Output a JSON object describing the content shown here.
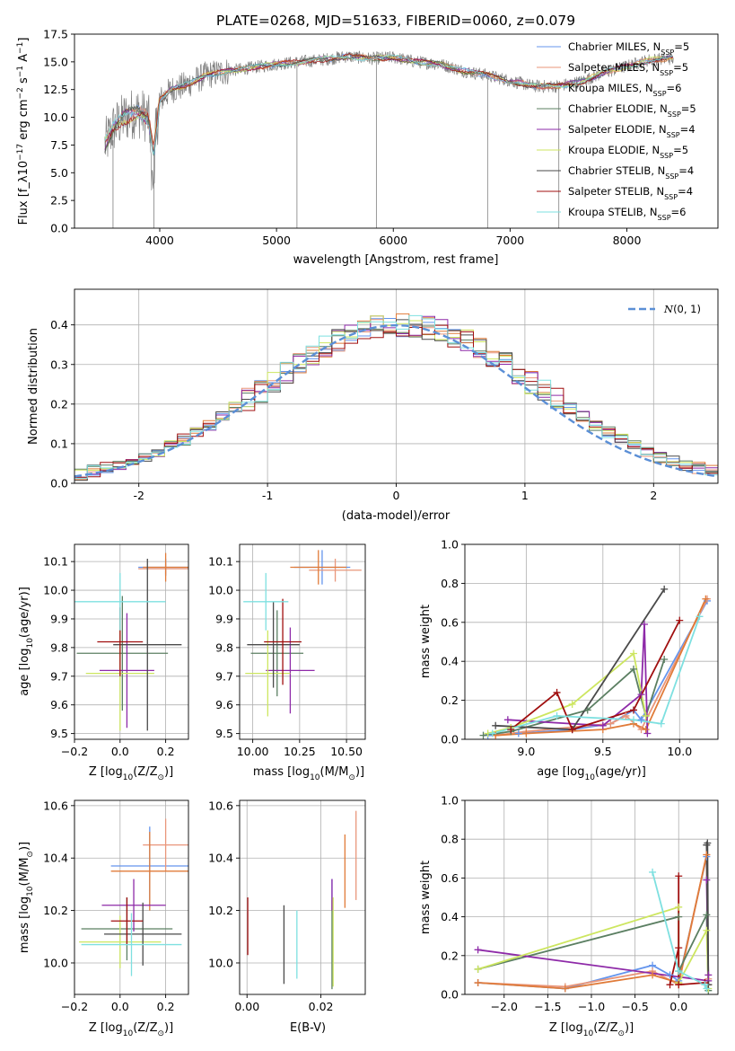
{
  "chart_data": [
    {
      "id": "spectrum",
      "type": "line",
      "title": "PLATE=0268, MJD=51633, FIBERID=0060, z=0.079",
      "xlabel": "wavelength [Angstrom, rest frame]",
      "ylabel": "Flux [f_λ10^{-17} erg cm^{-2} s^{-1} A^{-1}]",
      "xlim": [
        3270,
        8780
      ],
      "ylim": [
        0,
        17.5
      ],
      "xticks": [
        4000,
        5000,
        6000,
        7000,
        8000
      ],
      "yticks": [
        0.0,
        2.5,
        5.0,
        7.5,
        10.0,
        12.5,
        15.0,
        17.5
      ],
      "legend_position": "right",
      "data_envelope": {
        "x": [
          3530,
          3600,
          3700,
          3800,
          3900,
          3950,
          4000,
          4100,
          4200,
          4300,
          4400,
          4500,
          4600,
          4800,
          5000,
          5200,
          5400,
          5600,
          5800,
          6000,
          6200,
          6400,
          6600,
          6800,
          7000,
          7200,
          7400,
          7600,
          7800,
          8000,
          8200,
          8400
        ],
        "y": [
          7.5,
          9.0,
          10.0,
          10.5,
          10.0,
          7.0,
          11.5,
          12.5,
          12.8,
          13.3,
          13.8,
          14.0,
          14.2,
          14.5,
          14.8,
          15.0,
          15.2,
          15.5,
          15.3,
          15.4,
          15.0,
          14.8,
          14.2,
          13.8,
          13.3,
          12.8,
          12.8,
          13.2,
          14.0,
          14.6,
          15.2,
          15.3
        ]
      },
      "series": [
        {
          "name": "Chabrier MILES, N_SSP=5",
          "color": "#6495ed"
        },
        {
          "name": "Salpeter MILES, N_SSP=5",
          "color": "#e9967a"
        },
        {
          "name": "Kroupa MILES, N_SSP=6",
          "color": "#e07b39"
        },
        {
          "name": "Chabrier ELODIE, N_SSP=5",
          "color": "#5b7f62"
        },
        {
          "name": "Salpeter ELODIE, N_SSP=4",
          "color": "#8e2aa8"
        },
        {
          "name": "Kroupa ELODIE, N_SSP=5",
          "color": "#cde660"
        },
        {
          "name": "Chabrier STELIB, N_SSP=4",
          "color": "#4a4a4a"
        },
        {
          "name": "Salpeter STELIB, N_SSP=4",
          "color": "#a00f0f"
        },
        {
          "name": "Kroupa STELIB, N_SSP=6",
          "color": "#7ee0e0"
        }
      ]
    },
    {
      "id": "residuals",
      "type": "line",
      "xlabel": "(data-model)/error",
      "ylabel": "Normed distribution",
      "xlim": [
        -2.5,
        2.5
      ],
      "ylim": [
        0,
        0.49
      ],
      "xticks": [
        -2,
        -1,
        0,
        1,
        2
      ],
      "yticks": [
        0.0,
        0.1,
        0.2,
        0.3,
        0.4
      ],
      "legend": "N(0,1)",
      "legend_position": "top-right",
      "histogram_bin_width": 0.1,
      "histogram_center": [
        0.022,
        0.031,
        0.038,
        0.046,
        0.056,
        0.066,
        0.08,
        0.095,
        0.11,
        0.128,
        0.147,
        0.168,
        0.19,
        0.212,
        0.234,
        0.256,
        0.28,
        0.303,
        0.325,
        0.344,
        0.36,
        0.374,
        0.385,
        0.393,
        0.398,
        0.399,
        0.398,
        0.393,
        0.385,
        0.374,
        0.36,
        0.344,
        0.325,
        0.303,
        0.28,
        0.256,
        0.234,
        0.212,
        0.19,
        0.168,
        0.147,
        0.128,
        0.11,
        0.095,
        0.08,
        0.066,
        0.056,
        0.046,
        0.038,
        0.031
      ]
    },
    {
      "id": "age_vs_Z",
      "type": "scatter",
      "xlabel": "Z [log10(Z/Z⊙)]",
      "ylabel": "age  [log10(age/yr)]",
      "xlim": [
        -0.2,
        0.3
      ],
      "ylim": [
        9.48,
        10.16
      ],
      "xticks": [
        -0.2,
        0.0,
        0.2
      ],
      "xticklabels": [
        "−0.2",
        "0.0",
        "0.2"
      ],
      "yticks": [
        9.5,
        9.6,
        9.7,
        9.8,
        9.9,
        10.0,
        10.1
      ],
      "points": [
        {
          "series": 0,
          "x": 0.2,
          "xerr": 0.12,
          "y": 10.08,
          "yerr": 0.03
        },
        {
          "series": 1,
          "x": 0.2,
          "xerr": 0.12,
          "y": 10.075,
          "yerr": 0.02
        },
        {
          "series": 2,
          "x": 0.2,
          "xerr": 0.1,
          "y": 10.08,
          "yerr": 0.05
        },
        {
          "series": 3,
          "x": 0.01,
          "xerr": 0.2,
          "y": 9.78,
          "yerr": 0.2
        },
        {
          "series": 4,
          "x": 0.03,
          "xerr": 0.12,
          "y": 9.72,
          "yerr": 0.2
        },
        {
          "series": 5,
          "x": 0.0,
          "xerr": 0.15,
          "y": 9.71,
          "yerr": 0.2
        },
        {
          "series": 6,
          "x": 0.12,
          "xerr": 0.15,
          "y": 9.81,
          "yerr": 0.3
        },
        {
          "series": 7,
          "x": 0.0,
          "xerr": 0.1,
          "y": 9.82,
          "yerr": 0.12
        },
        {
          "series": 8,
          "x": 0.0,
          "xerr": 0.2,
          "y": 9.96,
          "yerr": 0.1
        }
      ]
    },
    {
      "id": "age_vs_mass",
      "type": "scatter",
      "xlabel": "mass [log10(M/M⊙)]",
      "xlim": [
        9.93,
        10.6
      ],
      "ylim": [
        9.48,
        10.16
      ],
      "xticks": [
        10.0,
        10.25,
        10.5
      ],
      "xticklabels": [
        "10.00",
        "10.25",
        "10.50"
      ],
      "yticks": [
        9.5,
        9.6,
        9.7,
        9.8,
        9.9,
        10.0,
        10.1
      ],
      "points": [
        {
          "series": 0,
          "x": 10.37,
          "xerr": 0.15,
          "y": 10.08,
          "yerr": 0.06
        },
        {
          "series": 1,
          "x": 10.44,
          "xerr": 0.14,
          "y": 10.07,
          "yerr": 0.04
        },
        {
          "series": 2,
          "x": 10.35,
          "xerr": 0.15,
          "y": 10.08,
          "yerr": 0.06
        },
        {
          "series": 3,
          "x": 10.13,
          "xerr": 0.14,
          "y": 9.78,
          "yerr": 0.15
        },
        {
          "series": 4,
          "x": 10.2,
          "xerr": 0.13,
          "y": 9.72,
          "yerr": 0.15
        },
        {
          "series": 5,
          "x": 10.08,
          "xerr": 0.12,
          "y": 9.71,
          "yerr": 0.15
        },
        {
          "series": 6,
          "x": 10.11,
          "xerr": 0.14,
          "y": 9.81,
          "yerr": 0.15
        },
        {
          "series": 7,
          "x": 10.16,
          "xerr": 0.1,
          "y": 9.82,
          "yerr": 0.15
        },
        {
          "series": 8,
          "x": 10.07,
          "xerr": 0.12,
          "y": 9.96,
          "yerr": 0.1
        }
      ]
    },
    {
      "id": "weight_vs_age",
      "type": "line",
      "xlabel": "age  [log10(age/yr)]",
      "ylabel": "mass weight",
      "xlim": [
        8.6,
        10.25
      ],
      "ylim": [
        0.0,
        1.0
      ],
      "xticks": [
        9.0,
        9.5,
        10.0
      ],
      "xticklabels": [
        "9.0",
        "9.5",
        "10.0"
      ],
      "yticks": [
        0.0,
        0.2,
        0.4,
        0.6,
        0.8,
        1.0
      ],
      "series": [
        {
          "series": 0,
          "x": [
            8.75,
            8.95,
            9.3,
            9.55,
            9.7,
            9.75,
            10.18
          ],
          "y": [
            0.02,
            0.03,
            0.05,
            0.08,
            0.15,
            0.1,
            0.71
          ]
        },
        {
          "series": 1,
          "x": [
            8.8,
            9.0,
            9.55,
            9.65,
            9.75,
            10.18
          ],
          "y": [
            0.02,
            0.04,
            0.08,
            0.12,
            0.05,
            0.72
          ]
        },
        {
          "series": 2,
          "x": [
            8.8,
            9.0,
            9.5,
            9.7,
            9.78,
            10.17
          ],
          "y": [
            0.02,
            0.03,
            0.05,
            0.08,
            0.05,
            0.72
          ]
        },
        {
          "series": 3,
          "x": [
            8.72,
            8.9,
            9.4,
            9.7,
            9.78,
            9.9
          ],
          "y": [
            0.02,
            0.04,
            0.15,
            0.36,
            0.12,
            0.41
          ]
        },
        {
          "series": 4,
          "x": [
            8.88,
            9.5,
            9.75,
            9.77,
            9.79
          ],
          "y": [
            0.1,
            0.07,
            0.23,
            0.59,
            0.03
          ]
        },
        {
          "series": 5,
          "x": [
            8.75,
            8.9,
            9.3,
            9.7,
            9.78
          ],
          "y": [
            0.03,
            0.06,
            0.18,
            0.44,
            0.12
          ]
        },
        {
          "series": 6,
          "x": [
            8.8,
            9.3,
            9.9
          ],
          "y": [
            0.07,
            0.05,
            0.77
          ]
        },
        {
          "series": 7,
          "x": [
            8.9,
            9.2,
            9.3,
            9.7,
            10.0
          ],
          "y": [
            0.05,
            0.24,
            0.05,
            0.15,
            0.61
          ]
        },
        {
          "series": 8,
          "x": [
            8.78,
            9.2,
            9.7,
            9.88,
            10.13
          ],
          "y": [
            0.03,
            0.12,
            0.1,
            0.08,
            0.63
          ]
        }
      ]
    },
    {
      "id": "mass_vs_Z",
      "type": "scatter",
      "xlabel": "Z [log10(Z/Z⊙)]",
      "ylabel": "mass [log10(M/M⊙)]",
      "xlim": [
        -0.2,
        0.3
      ],
      "ylim": [
        9.88,
        10.62
      ],
      "xticks": [
        -0.2,
        0.0,
        0.2
      ],
      "xticklabels": [
        "−0.2",
        "0.0",
        "0.2"
      ],
      "yticks": [
        10.0,
        10.2,
        10.4,
        10.6
      ],
      "points": [
        {
          "series": 0,
          "x": 0.13,
          "xerr": 0.17,
          "y": 10.37,
          "yerr": 0.15
        },
        {
          "series": 1,
          "x": 0.2,
          "xerr": 0.1,
          "y": 10.45,
          "yerr": 0.1
        },
        {
          "series": 2,
          "x": 0.13,
          "xerr": 0.17,
          "y": 10.35,
          "yerr": 0.15
        },
        {
          "series": 3,
          "x": 0.03,
          "xerr": 0.2,
          "y": 10.13,
          "yerr": 0.12
        },
        {
          "series": 4,
          "x": 0.06,
          "xerr": 0.14,
          "y": 10.22,
          "yerr": 0.1
        },
        {
          "series": 5,
          "x": 0.0,
          "xerr": 0.18,
          "y": 10.08,
          "yerr": 0.1
        },
        {
          "series": 6,
          "x": 0.1,
          "xerr": 0.17,
          "y": 10.11,
          "yerr": 0.12
        },
        {
          "series": 7,
          "x": 0.03,
          "xerr": 0.07,
          "y": 10.16,
          "yerr": 0.09
        },
        {
          "series": 8,
          "x": 0.05,
          "xerr": 0.22,
          "y": 10.07,
          "yerr": 0.12
        }
      ]
    },
    {
      "id": "mass_vs_ebv",
      "type": "scatter",
      "xlabel": "E(B-V)",
      "xlim": [
        -0.002,
        0.032
      ],
      "ylim": [
        9.88,
        10.62
      ],
      "xticks": [
        0.0,
        0.02
      ],
      "xticklabels": [
        "0.00",
        "0.02"
      ],
      "yticks": [
        10.0,
        10.2,
        10.4,
        10.6
      ],
      "points": [
        {
          "series": 0,
          "x": 0.023,
          "xerr": 0,
          "y": 10.28,
          "yerr": 0.04
        },
        {
          "series": 1,
          "x": 0.0295,
          "xerr": 0,
          "y": 10.41,
          "yerr": 0.17
        },
        {
          "series": 2,
          "x": 0.0265,
          "xerr": 0,
          "y": 10.35,
          "yerr": 0.14
        },
        {
          "series": 3,
          "x": 0.023,
          "xerr": 0,
          "y": 10.07,
          "yerr": 0.17
        },
        {
          "series": 4,
          "x": 0.023,
          "xerr": 0,
          "y": 10.26,
          "yerr": 0.06
        },
        {
          "series": 5,
          "x": 0.0233,
          "xerr": 0,
          "y": 10.08,
          "yerr": 0.17
        },
        {
          "series": 6,
          "x": 0.01,
          "xerr": 0,
          "y": 10.07,
          "yerr": 0.15
        },
        {
          "series": 7,
          "x": 0.0002,
          "xerr": 0,
          "y": 10.14,
          "yerr": 0.11
        },
        {
          "series": 8,
          "x": 0.0135,
          "xerr": 0,
          "y": 10.07,
          "yerr": 0.13
        }
      ]
    },
    {
      "id": "weight_vs_Z",
      "type": "line",
      "xlabel": "Z [log10(Z/Z⊙)]",
      "ylabel": "mass weight",
      "xlim": [
        -2.45,
        0.45
      ],
      "ylim": [
        0.0,
        1.0
      ],
      "xticks": [
        -2.0,
        -1.5,
        -1.0,
        -0.5,
        0.0
      ],
      "xticklabels": [
        "−2.0",
        "−1.5",
        "−1.0",
        "−0.5",
        "0.0"
      ],
      "yticks": [
        0.0,
        0.2,
        0.4,
        0.6,
        0.8,
        1.0
      ],
      "series": [
        {
          "series": 0,
          "x": [
            -2.3,
            -1.3,
            -0.3,
            -0.1,
            0.0,
            0.32,
            0.34
          ],
          "y": [
            0.06,
            0.03,
            0.15,
            0.1,
            0.07,
            0.71,
            0.05
          ]
        },
        {
          "series": 1,
          "x": [
            -2.3,
            -1.3,
            -0.3,
            0.0,
            0.32,
            0.34
          ],
          "y": [
            0.06,
            0.04,
            0.12,
            0.05,
            0.72,
            0.08
          ]
        },
        {
          "series": 2,
          "x": [
            -2.3,
            -1.3,
            -0.3,
            0.0,
            0.32,
            0.34
          ],
          "y": [
            0.06,
            0.03,
            0.1,
            0.06,
            0.72,
            0.05
          ]
        },
        {
          "series": 3,
          "x": [
            -2.3,
            0.0,
            0.0,
            0.32,
            0.34
          ],
          "y": [
            0.13,
            0.4,
            0.12,
            0.41,
            0.02
          ]
        },
        {
          "series": 4,
          "x": [
            -2.3,
            0.34,
            0.32,
            0.34
          ],
          "y": [
            0.23,
            0.07,
            0.59,
            0.1
          ]
        },
        {
          "series": 5,
          "x": [
            -2.3,
            0.0,
            0.0,
            0.32,
            0.34
          ],
          "y": [
            0.13,
            0.45,
            0.06,
            0.33,
            0.03
          ]
        },
        {
          "series": 6,
          "x": [
            0.32,
            0.34,
            0.33
          ],
          "y": [
            0.77,
            0.05,
            0.78
          ]
        },
        {
          "series": 7,
          "x": [
            -0.1,
            0.0,
            0.0,
            0.0,
            0.3
          ],
          "y": [
            0.05,
            0.24,
            0.61,
            0.05,
            0.06
          ]
        },
        {
          "series": 8,
          "x": [
            -0.3,
            0.0,
            0.3,
            0.32
          ],
          "y": [
            0.63,
            0.12,
            0.05,
            0.03
          ]
        }
      ]
    }
  ]
}
